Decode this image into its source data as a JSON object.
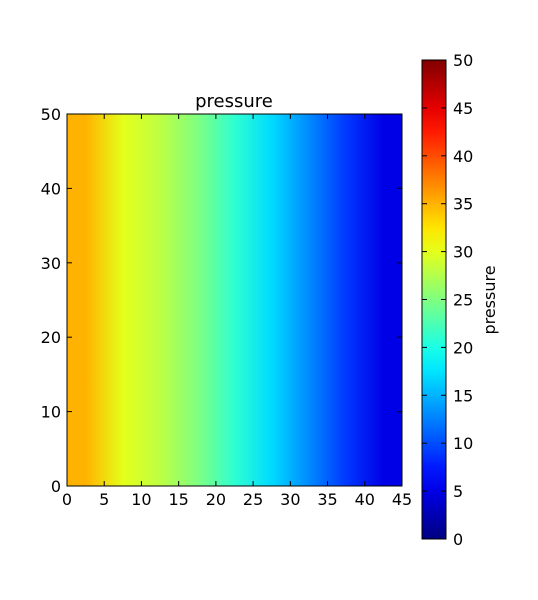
{
  "chart_data": {
    "type": "heatmap",
    "title": "pressure",
    "xlabel": "",
    "ylabel": "",
    "xlim": [
      0,
      45
    ],
    "ylim": [
      0,
      50
    ],
    "x_ticks": [
      0,
      5,
      10,
      15,
      20,
      25,
      30,
      35,
      40,
      45
    ],
    "y_ticks": [
      0,
      10,
      20,
      30,
      40,
      50
    ],
    "grid": false,
    "colormap": "jet",
    "colorbar": {
      "label": "pressure",
      "range": [
        0,
        50
      ],
      "ticks": [
        0,
        5,
        10,
        15,
        20,
        25,
        30,
        35,
        40,
        45,
        50
      ],
      "placement": "right"
    },
    "field": {
      "varies_along": "x",
      "columns": [
        {
          "x": [
            0,
            5
          ],
          "value": 35
        },
        {
          "x": [
            5,
            10
          ],
          "value": 30
        },
        {
          "x": [
            10,
            15
          ],
          "value": 28
        },
        {
          "x": [
            15,
            20
          ],
          "value": 25
        },
        {
          "x": [
            20,
            25
          ],
          "value": 21
        },
        {
          "x": [
            25,
            30
          ],
          "value": 17
        },
        {
          "x": [
            30,
            35
          ],
          "value": 13
        },
        {
          "x": [
            35,
            40
          ],
          "value": 9
        },
        {
          "x": [
            40,
            45
          ],
          "value": 5
        }
      ]
    }
  }
}
